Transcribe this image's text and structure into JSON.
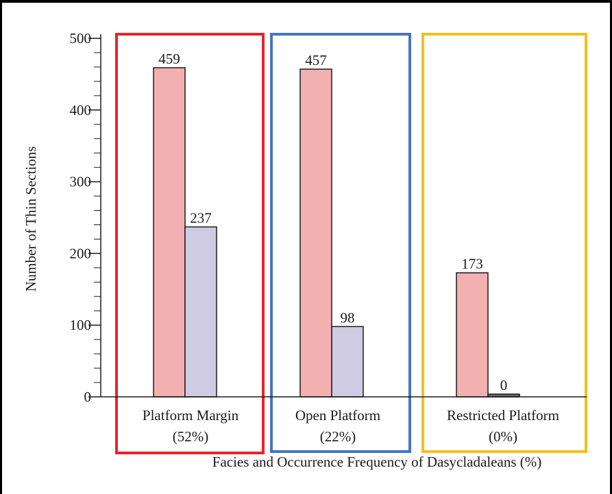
{
  "chart_data": {
    "type": "bar",
    "title": "",
    "xlabel": "Facies and Occurrence Frequency of Dasycladaleans (%)",
    "ylabel": "Number of Thin Sections",
    "ylim": [
      0,
      500
    ],
    "yticks": [
      "0",
      "100",
      "200",
      "300",
      "400",
      "500"
    ],
    "grid": false,
    "legend": "none",
    "groups": [
      {
        "name": "Platform Margin",
        "frequency": "(52%)",
        "box_color": "#e8232a",
        "values": [
          459,
          237
        ]
      },
      {
        "name": "Open Platform",
        "frequency": "(22%)",
        "box_color": "#4674c2",
        "values": [
          457,
          98
        ]
      },
      {
        "name": "Restricted Platform",
        "frequency": "(0%)",
        "box_color": "#f5bf1b",
        "values": [
          173,
          0
        ]
      }
    ],
    "series_colors": [
      "#f2b0b0",
      "#cecbe3"
    ],
    "value_labels": [
      [
        "459",
        "237"
      ],
      [
        "457",
        "98"
      ],
      [
        "173",
        "0"
      ]
    ]
  }
}
